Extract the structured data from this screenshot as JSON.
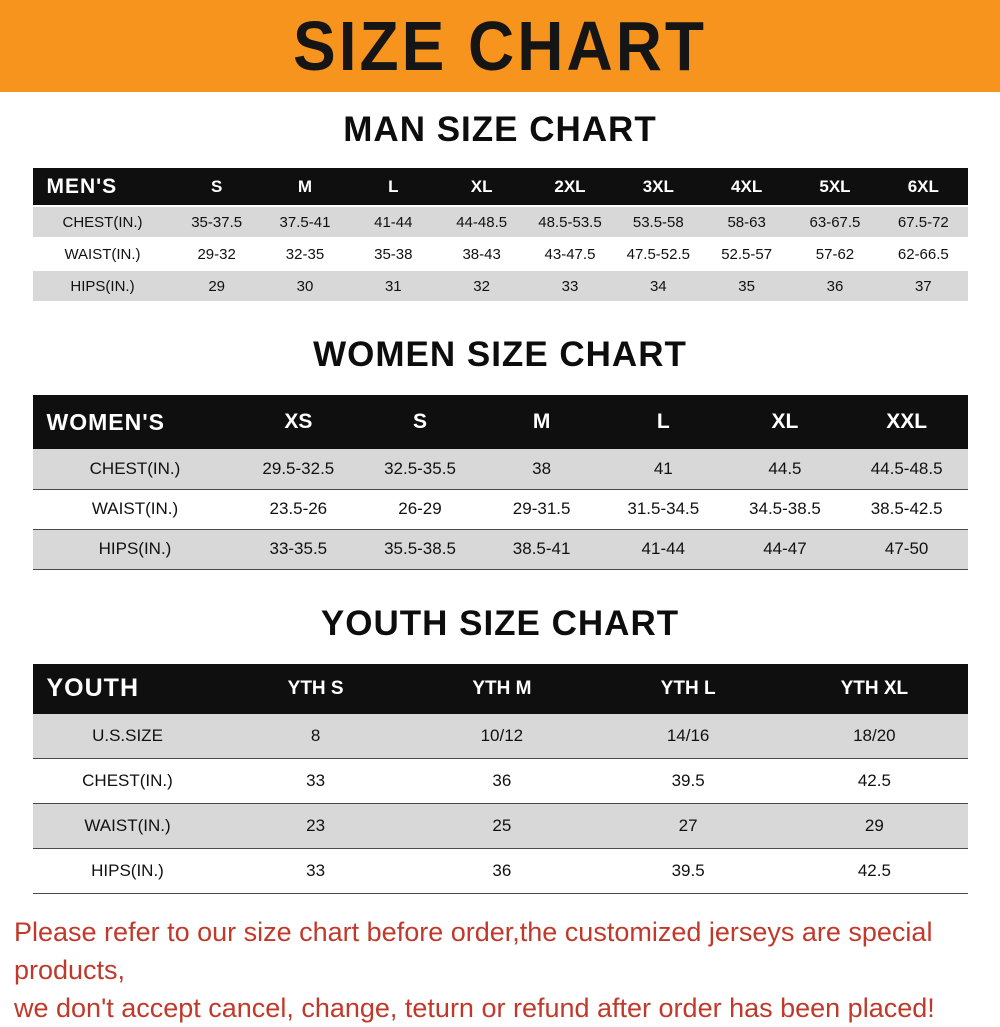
{
  "banner": {
    "title": "SIZE CHART",
    "bg_color": "#f7941e"
  },
  "colors": {
    "banner_bg": "#f7941e",
    "table_header_bg": "#0f0f0f",
    "row_alt_gray": "#d8d8d8",
    "notice_red": "#c0392b"
  },
  "chart_data": [
    {
      "type": "table",
      "id": "men",
      "title": "MAN SIZE CHART",
      "header_label": "MEN'S",
      "columns": [
        "S",
        "M",
        "L",
        "XL",
        "2XL",
        "3XL",
        "4XL",
        "5XL",
        "6XL"
      ],
      "rows": [
        {
          "label": "CHEST(IN.)",
          "values": [
            "35-37.5",
            "37.5-41",
            "41-44",
            "44-48.5",
            "48.5-53.5",
            "53.5-58",
            "58-63",
            "63-67.5",
            "67.5-72"
          ]
        },
        {
          "label": "WAIST(IN.)",
          "values": [
            "29-32",
            "32-35",
            "35-38",
            "38-43",
            "43-47.5",
            "47.5-52.5",
            "52.5-57",
            "57-62",
            "62-66.5"
          ]
        },
        {
          "label": "HIPS(IN.)",
          "values": [
            "29",
            "30",
            "31",
            "32",
            "33",
            "34",
            "35",
            "36",
            "37"
          ]
        }
      ]
    },
    {
      "type": "table",
      "id": "women",
      "title": "WOMEN SIZE CHART",
      "header_label": "WOMEN'S",
      "columns": [
        "XS",
        "S",
        "M",
        "L",
        "XL",
        "XXL"
      ],
      "rows": [
        {
          "label": "CHEST(IN.)",
          "values": [
            "29.5-32.5",
            "32.5-35.5",
            "38",
            "41",
            "44.5",
            "44.5-48.5"
          ]
        },
        {
          "label": "WAIST(IN.)",
          "values": [
            "23.5-26",
            "26-29",
            "29-31.5",
            "31.5-34.5",
            "34.5-38.5",
            "38.5-42.5"
          ]
        },
        {
          "label": "HIPS(IN.)",
          "values": [
            "33-35.5",
            "35.5-38.5",
            "38.5-41",
            "41-44",
            "44-47",
            "47-50"
          ]
        }
      ]
    },
    {
      "type": "table",
      "id": "youth",
      "title": "YOUTH SIZE CHART",
      "header_label": "YOUTH",
      "columns": [
        "YTH S",
        "YTH M",
        "YTH L",
        "YTH XL"
      ],
      "rows": [
        {
          "label": "U.S.SIZE",
          "values": [
            "8",
            "10/12",
            "14/16",
            "18/20"
          ]
        },
        {
          "label": "CHEST(IN.)",
          "values": [
            "33",
            "36",
            "39.5",
            "42.5"
          ]
        },
        {
          "label": "WAIST(IN.)",
          "values": [
            "23",
            "25",
            "27",
            "29"
          ]
        },
        {
          "label": "HIPS(IN.)",
          "values": [
            "33",
            "36",
            "39.5",
            "42.5"
          ]
        }
      ]
    }
  ],
  "footer": {
    "line1": "Please refer to our size chart before order,the customized jerseys are special products,",
    "line2": "we don't accept cancel, change, teturn or refund after order has been placed!"
  }
}
